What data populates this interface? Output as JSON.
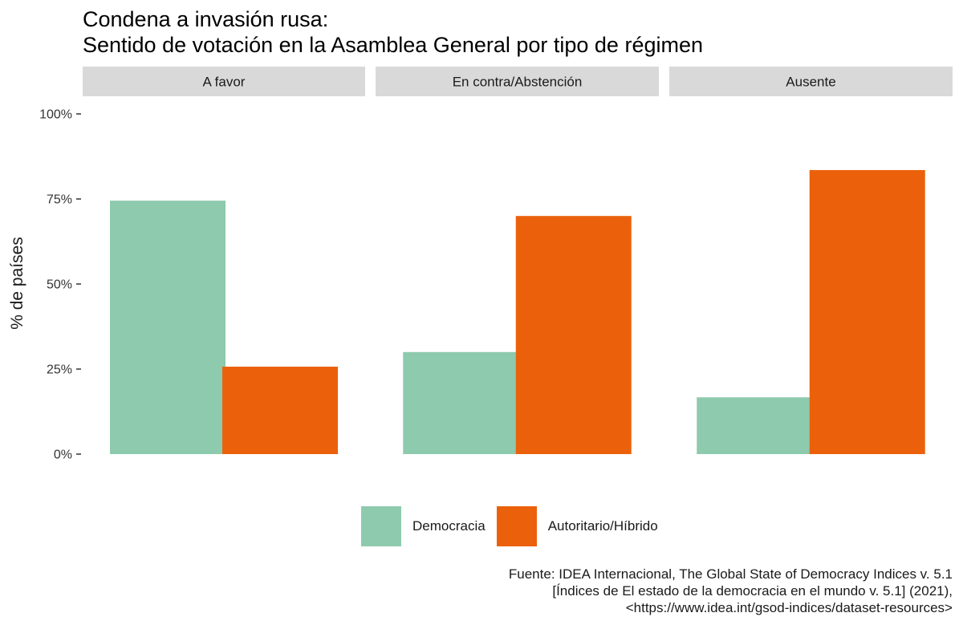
{
  "chart_data": {
    "type": "bar",
    "title": "Condena a invasión rusa:",
    "subtitle": "Sentido de votación en la Asamblea General por tipo de régimen",
    "xlabel": "",
    "ylabel": "% de países",
    "ylim": [
      0,
      1
    ],
    "yticks": [
      {
        "value": 0,
        "label": "0%"
      },
      {
        "value": 0.25,
        "label": "25%"
      },
      {
        "value": 0.5,
        "label": "50%"
      },
      {
        "value": 0.75,
        "label": "75%"
      },
      {
        "value": 1,
        "label": "100%"
      }
    ],
    "facets": [
      "A favor",
      "En contra/Abstención",
      "Ausente"
    ],
    "series": [
      {
        "name": "Democracia",
        "color": "#8ECAAE",
        "values": [
          0.745,
          0.3,
          0.167
        ]
      },
      {
        "name": "Autoritario/Híbrido",
        "color": "#EB610B",
        "values": [
          0.257,
          0.7,
          0.835
        ]
      }
    ],
    "grid": true,
    "legend_position": "bottom",
    "caption": [
      "Fuente: IDEA Internacional, The Global State of Democracy Indices v. 5.1",
      "[Índices de El estado de la democracia en el mundo v. 5.1] (2021),",
      "<https://www.idea.int/gsod-indices/dataset-resources>"
    ]
  },
  "colors": {
    "strip_bg": "#D9D9D9",
    "tick": "#333333"
  }
}
